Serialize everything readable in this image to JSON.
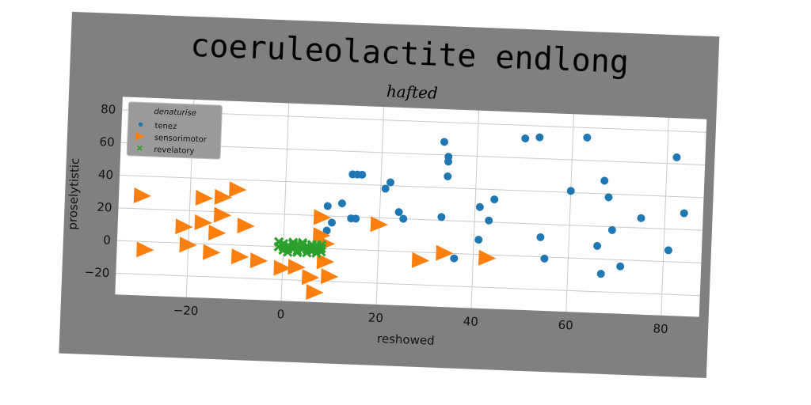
{
  "colors": {
    "card": "#808080",
    "plot_bg": "#ffffff",
    "grid": "#c8c8c8",
    "tenez": "#1f77b4",
    "sensorimotor": "#ff7f0e",
    "revelatory": "#2ca02c"
  },
  "chart_data": {
    "type": "scatter",
    "suptitle": "coeruleolactite endlong",
    "title": "hafted",
    "xlabel": "reshowed",
    "ylabel": "proselytistic",
    "xlim": [
      -35,
      88
    ],
    "ylim": [
      -33,
      88
    ],
    "xticks": [
      -20,
      0,
      20,
      40,
      60,
      80
    ],
    "yticks": [
      -20,
      0,
      20,
      40,
      60,
      80
    ],
    "grid": true,
    "legend": {
      "title": "denaturise",
      "placement": "top-left"
    },
    "series": [
      {
        "name": "tenez",
        "marker": "circle",
        "points": [
          [
            9,
            26
          ],
          [
            10,
            16
          ],
          [
            9,
            11
          ],
          [
            12,
            28
          ],
          [
            14,
            46
          ],
          [
            15,
            46
          ],
          [
            16,
            46
          ],
          [
            14,
            19
          ],
          [
            15,
            19
          ],
          [
            21,
            38
          ],
          [
            22,
            42
          ],
          [
            24,
            24
          ],
          [
            25,
            20
          ],
          [
            33,
            68
          ],
          [
            33,
            22
          ],
          [
            34,
            59
          ],
          [
            34,
            56
          ],
          [
            34,
            47
          ],
          [
            36,
            -3
          ],
          [
            41,
            29
          ],
          [
            41,
            9
          ],
          [
            43,
            21
          ],
          [
            44,
            34
          ],
          [
            50,
            72
          ],
          [
            53,
            73
          ],
          [
            54,
            12
          ],
          [
            55,
            -1
          ],
          [
            60,
            41
          ],
          [
            63,
            74
          ],
          [
            66,
            8
          ],
          [
            67,
            -9
          ],
          [
            67,
            48
          ],
          [
            68,
            38
          ],
          [
            69,
            18
          ],
          [
            71,
            -4
          ],
          [
            75,
            26
          ],
          [
            81,
            7
          ],
          [
            82,
            64
          ],
          [
            84,
            30
          ]
        ]
      },
      {
        "name": "sensorimotor",
        "marker": "triangle-right",
        "points": [
          [
            -30,
            28
          ],
          [
            -29,
            -5
          ],
          [
            -21,
            10
          ],
          [
            -20,
            -1
          ],
          [
            -17,
            28
          ],
          [
            -17,
            13
          ],
          [
            -15,
            -5
          ],
          [
            -14,
            7
          ],
          [
            -13,
            18
          ],
          [
            -13,
            29
          ],
          [
            -10,
            34
          ],
          [
            -9,
            -7
          ],
          [
            -8,
            12
          ],
          [
            -5,
            -9
          ],
          [
            0,
            -13
          ],
          [
            3,
            -12
          ],
          [
            6,
            -18
          ],
          [
            7,
            -27
          ],
          [
            8,
            8
          ],
          [
            8,
            19
          ],
          [
            9,
            3
          ],
          [
            9,
            -8
          ],
          [
            10,
            -17
          ],
          [
            20,
            16
          ],
          [
            29,
            -5
          ],
          [
            34,
            0
          ],
          [
            43,
            -2
          ]
        ]
      },
      {
        "name": "revelatory",
        "marker": "x",
        "points": [
          [
            -1,
            3
          ],
          [
            0,
            0
          ],
          [
            1,
            -3
          ],
          [
            2,
            2
          ],
          [
            2,
            -1
          ],
          [
            3,
            0
          ],
          [
            3,
            -2
          ],
          [
            4,
            2
          ],
          [
            4,
            -1
          ],
          [
            5,
            1
          ],
          [
            5,
            -3
          ],
          [
            6,
            0
          ],
          [
            6,
            2
          ],
          [
            7,
            -1
          ],
          [
            7,
            1
          ],
          [
            0,
            -2
          ],
          [
            1,
            1
          ],
          [
            2,
            3
          ],
          [
            3,
            -3
          ],
          [
            4,
            0
          ],
          [
            5,
            -1
          ],
          [
            6,
            -2
          ],
          [
            7,
            2
          ],
          [
            8,
            0
          ],
          [
            1,
            -1
          ],
          [
            2,
            0
          ],
          [
            3,
            2
          ],
          [
            -1,
            0
          ],
          [
            0,
            2
          ],
          [
            4,
            3
          ],
          [
            5,
            0
          ],
          [
            6,
            1
          ],
          [
            7,
            -3
          ],
          [
            8,
            -2
          ],
          [
            8,
            2
          ]
        ]
      }
    ]
  }
}
